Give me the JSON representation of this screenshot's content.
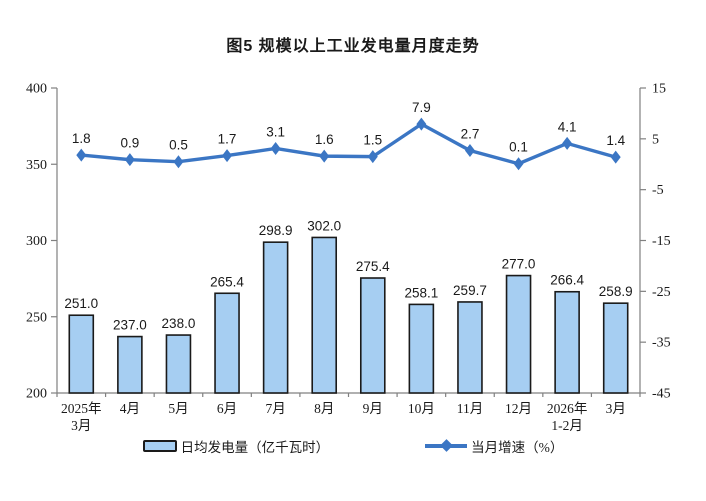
{
  "title": "图5 规模以上工业发电量月度走势",
  "legend": {
    "bar_label": "日均发电量（亿千瓦时）",
    "line_label": "当月增速（%）"
  },
  "chart_data": {
    "type": "bar+line",
    "title": "图5 规模以上工业发电量月度走势",
    "categories": [
      [
        "2025年",
        "3月"
      ],
      [
        "4月"
      ],
      [
        "5月"
      ],
      [
        "6月"
      ],
      [
        "7月"
      ],
      [
        "8月"
      ],
      [
        "9月"
      ],
      [
        "10月"
      ],
      [
        "11月"
      ],
      [
        "12月"
      ],
      [
        "2026年",
        "1-2月"
      ],
      [
        "3月"
      ]
    ],
    "series": [
      {
        "name": "日均发电量（亿千瓦时）",
        "type": "bar",
        "axis": "left",
        "values": [
          251.0,
          237.0,
          238.0,
          265.4,
          298.9,
          302.0,
          275.4,
          258.1,
          259.7,
          277.0,
          266.4,
          258.9
        ]
      },
      {
        "name": "当月增速（%）",
        "type": "line",
        "axis": "right",
        "values": [
          1.8,
          0.9,
          0.5,
          1.7,
          3.1,
          1.6,
          1.5,
          7.9,
          2.7,
          0.1,
          4.1,
          1.4
        ]
      }
    ],
    "left_axis": {
      "min": 200,
      "max": 400,
      "ticks": [
        400,
        350,
        300,
        250,
        200
      ]
    },
    "right_axis": {
      "min": -45,
      "max": 15,
      "ticks": [
        15,
        5,
        -5,
        -15,
        -25,
        -35,
        -45
      ]
    },
    "grid": false,
    "legend_position": "bottom",
    "colors": {
      "bar_fill": "#A6CEF2",
      "bar_stroke": "#1a1a1a",
      "line": "#3B76C4",
      "axis": "#808080",
      "text": "#1a1a1a"
    }
  }
}
